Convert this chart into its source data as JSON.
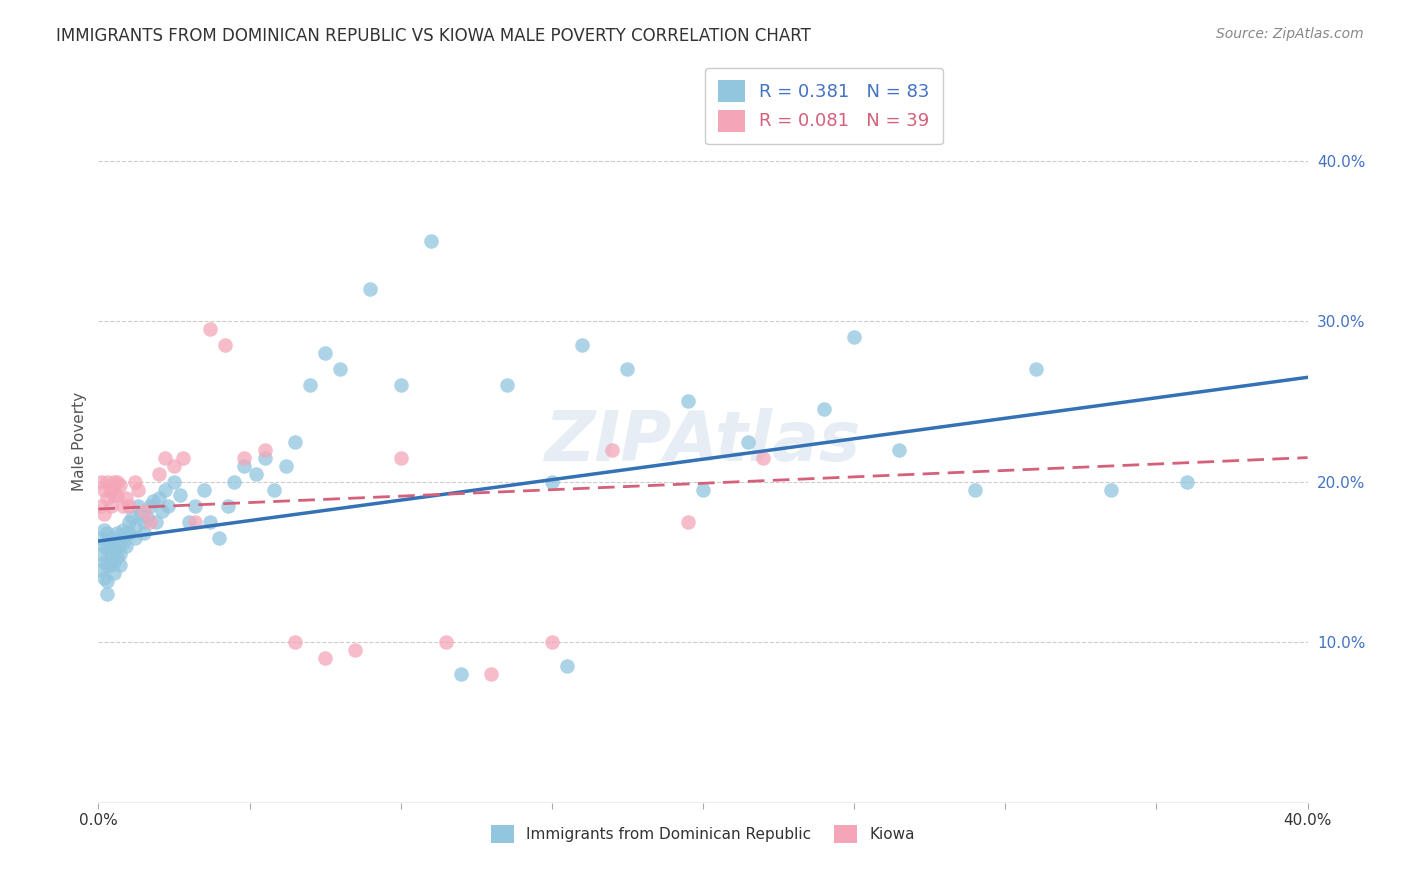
{
  "title": "IMMIGRANTS FROM DOMINICAN REPUBLIC VS KIOWA MALE POVERTY CORRELATION CHART",
  "source": "Source: ZipAtlas.com",
  "ylabel": "Male Poverty",
  "xlim": [
    0.0,
    0.4
  ],
  "ylim": [
    0.0,
    0.45
  ],
  "blue_color": "#92c5de",
  "pink_color": "#f4a6b8",
  "blue_line_color": "#3572b5",
  "pink_line_color": "#d4607a",
  "watermark": "ZIPAtlas",
  "blue_scatter_x": [
    0.001,
    0.001,
    0.001,
    0.002,
    0.002,
    0.002,
    0.002,
    0.003,
    0.003,
    0.003,
    0.003,
    0.003,
    0.004,
    0.004,
    0.004,
    0.005,
    0.005,
    0.005,
    0.005,
    0.006,
    0.006,
    0.006,
    0.007,
    0.007,
    0.007,
    0.008,
    0.008,
    0.009,
    0.009,
    0.01,
    0.01,
    0.011,
    0.012,
    0.012,
    0.013,
    0.014,
    0.015,
    0.015,
    0.016,
    0.017,
    0.018,
    0.019,
    0.02,
    0.021,
    0.022,
    0.023,
    0.025,
    0.027,
    0.03,
    0.032,
    0.035,
    0.037,
    0.04,
    0.043,
    0.045,
    0.048,
    0.052,
    0.055,
    0.058,
    0.062,
    0.065,
    0.07,
    0.075,
    0.08,
    0.09,
    0.1,
    0.11,
    0.12,
    0.135,
    0.15,
    0.16,
    0.175,
    0.195,
    0.215,
    0.24,
    0.265,
    0.29,
    0.31,
    0.335,
    0.36,
    0.155,
    0.2,
    0.25
  ],
  "blue_scatter_y": [
    0.165,
    0.155,
    0.145,
    0.17,
    0.16,
    0.15,
    0.14,
    0.168,
    0.158,
    0.148,
    0.138,
    0.13,
    0.162,
    0.155,
    0.148,
    0.165,
    0.158,
    0.15,
    0.143,
    0.168,
    0.16,
    0.153,
    0.163,
    0.155,
    0.148,
    0.17,
    0.162,
    0.168,
    0.16,
    0.175,
    0.168,
    0.178,
    0.172,
    0.165,
    0.185,
    0.18,
    0.175,
    0.168,
    0.178,
    0.185,
    0.188,
    0.175,
    0.19,
    0.182,
    0.195,
    0.185,
    0.2,
    0.192,
    0.175,
    0.185,
    0.195,
    0.175,
    0.165,
    0.185,
    0.2,
    0.21,
    0.205,
    0.215,
    0.195,
    0.21,
    0.225,
    0.26,
    0.28,
    0.27,
    0.32,
    0.26,
    0.35,
    0.08,
    0.26,
    0.2,
    0.285,
    0.27,
    0.25,
    0.225,
    0.245,
    0.22,
    0.195,
    0.27,
    0.195,
    0.2,
    0.085,
    0.195,
    0.29
  ],
  "pink_scatter_x": [
    0.001,
    0.001,
    0.002,
    0.002,
    0.003,
    0.003,
    0.004,
    0.004,
    0.005,
    0.005,
    0.006,
    0.006,
    0.007,
    0.008,
    0.009,
    0.01,
    0.012,
    0.013,
    0.015,
    0.017,
    0.02,
    0.022,
    0.025,
    0.028,
    0.032,
    0.037,
    0.042,
    0.048,
    0.055,
    0.065,
    0.075,
    0.085,
    0.1,
    0.115,
    0.13,
    0.15,
    0.17,
    0.195,
    0.22
  ],
  "pink_scatter_y": [
    0.2,
    0.185,
    0.195,
    0.18,
    0.2,
    0.19,
    0.195,
    0.185,
    0.2,
    0.192,
    0.2,
    0.192,
    0.198,
    0.185,
    0.19,
    0.185,
    0.2,
    0.195,
    0.182,
    0.175,
    0.205,
    0.215,
    0.21,
    0.215,
    0.175,
    0.295,
    0.285,
    0.215,
    0.22,
    0.1,
    0.09,
    0.095,
    0.215,
    0.1,
    0.08,
    0.1,
    0.22,
    0.175,
    0.215
  ],
  "blue_trendline_x0": 0.0,
  "blue_trendline_y0": 0.163,
  "blue_trendline_x1": 0.4,
  "blue_trendline_y1": 0.265,
  "pink_trendline_x0": 0.0,
  "pink_trendline_y0": 0.183,
  "pink_trendline_x1": 0.4,
  "pink_trendline_y1": 0.215
}
